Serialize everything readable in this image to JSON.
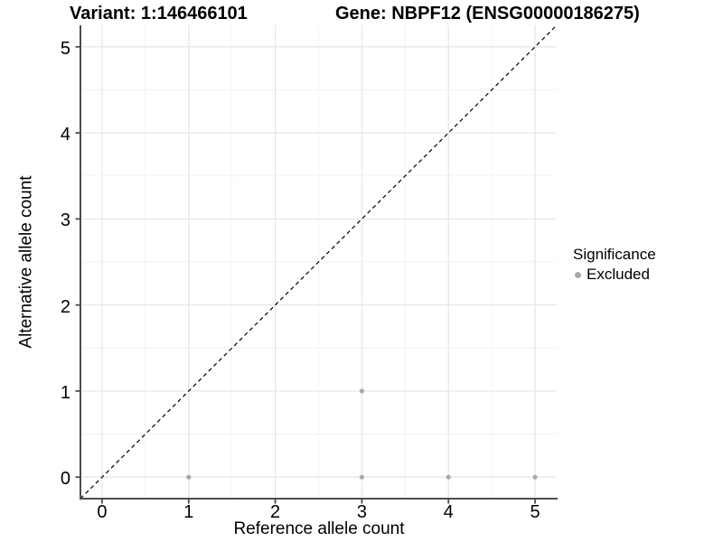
{
  "titles": {
    "variant": "Variant: 1:146466101",
    "gene": "Gene: NBPF12 (ENSG00000186275)"
  },
  "axes": {
    "x": {
      "label": "Reference allele count",
      "tick_values": [
        0,
        1,
        2,
        3,
        4,
        5
      ]
    },
    "y": {
      "label": "Alternative allele count",
      "tick_values": [
        0,
        1,
        2,
        3,
        4,
        5
      ]
    }
  },
  "legend": {
    "title": "Significance",
    "items": [
      {
        "label": "Excluded",
        "marker": "dot-icon",
        "color": "#a9a9a9"
      }
    ]
  },
  "chart_data": {
    "type": "scatter",
    "title": "Variant: 1:146466101",
    "subtitle": "Gene: NBPF12 (ENSG00000186275)",
    "xlabel": "Reference allele count",
    "ylabel": "Alternative allele count",
    "xlim": [
      -0.25,
      5.25
    ],
    "ylim": [
      -0.25,
      5.25
    ],
    "x_ticks": [
      0,
      1,
      2,
      3,
      4,
      5
    ],
    "y_ticks": [
      0,
      1,
      2,
      3,
      4,
      5
    ],
    "grid": "major+minor",
    "legend_position": "right",
    "series": [
      {
        "name": "Excluded",
        "color": "#a9a9a9",
        "points": [
          [
            1,
            0
          ],
          [
            3,
            0
          ],
          [
            4,
            0
          ],
          [
            5,
            0
          ],
          [
            3,
            1
          ]
        ]
      }
    ],
    "reference_line": {
      "kind": "identity y=x",
      "style": "dashed",
      "color": "#000000",
      "from": [
        -0.25,
        -0.25
      ],
      "to": [
        5.25,
        5.25
      ]
    }
  },
  "colors": {
    "background": "#ffffff",
    "axis_line": "#4d4d4d",
    "grid_major": "#e7e7e7",
    "grid_minor": "#f3f3f3",
    "text": "#000000"
  }
}
